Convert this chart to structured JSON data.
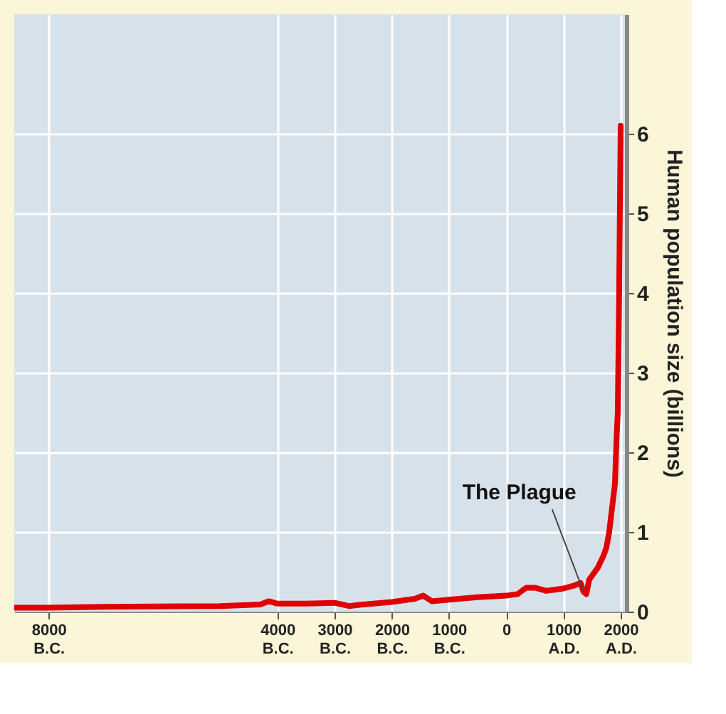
{
  "chart_data": {
    "type": "line",
    "ylabel": "Human population size (billions)",
    "x": [
      -8600,
      -8000,
      -7000,
      -5000,
      -4300,
      -4150,
      -4000,
      -3500,
      -3000,
      -2750,
      -2500,
      -2000,
      -1600,
      -1450,
      -1300,
      -1000,
      -500,
      0,
      200,
      350,
      500,
      700,
      800,
      1000,
      1200,
      1300,
      1350,
      1400,
      1450,
      1600,
      1700,
      1750,
      1800,
      1850,
      1900,
      1930,
      1950,
      1970,
      2000
    ],
    "series": [
      {
        "color": "#e00000",
        "values": [
          0.05,
          0.05,
          0.06,
          0.07,
          0.09,
          0.13,
          0.1,
          0.1,
          0.11,
          0.07,
          0.09,
          0.12,
          0.16,
          0.2,
          0.13,
          0.15,
          0.18,
          0.2,
          0.22,
          0.3,
          0.3,
          0.26,
          0.27,
          0.29,
          0.33,
          0.36,
          0.25,
          0.22,
          0.4,
          0.55,
          0.7,
          0.8,
          1.0,
          1.3,
          1.6,
          2.2,
          2.5,
          3.7,
          6.1
        ]
      }
    ],
    "xlim": [
      -8600,
      2100
    ],
    "xticks": [
      {
        "value": -8000,
        "label": "8000 B.C."
      },
      {
        "value": -4000,
        "label": "4000 B.C."
      },
      {
        "value": -3000,
        "label": "3000 B.C."
      },
      {
        "value": -2000,
        "label": "2000 B.C."
      },
      {
        "value": -1000,
        "label": "1000 B.C."
      },
      0,
      {
        "value": 1000,
        "label": "1000 A.D."
      },
      {
        "value": 2000,
        "label": "2000 A.D."
      }
    ],
    "ylim": [
      0,
      7.5
    ],
    "yticks": [
      0,
      1,
      2,
      3,
      4,
      5,
      6
    ],
    "grid": true,
    "line_style": "solid",
    "marker": "none",
    "annotations": [
      {
        "text": "The Plague",
        "x": 1350,
        "y": 0.25
      }
    ]
  }
}
